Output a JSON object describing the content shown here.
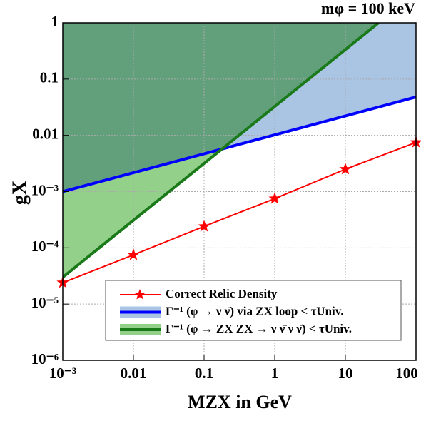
{
  "chart_data": {
    "type": "line",
    "title": "mφ = 100 keV",
    "x_label": "MZX in GeV",
    "y_label": "gX",
    "log_x": true,
    "log_y": true,
    "grid": true,
    "xlim": [
      0.001,
      100
    ],
    "ylim": [
      1e-06,
      1
    ],
    "xticks": [
      {
        "value": 0.001,
        "label": "10⁻³"
      },
      0.01,
      0.1,
      1,
      10,
      100
    ],
    "yticks": [
      {
        "value": 1e-06,
        "label": "10⁻⁶"
      },
      {
        "value": 1e-05,
        "label": "10⁻⁵"
      },
      {
        "value": 0.0001,
        "label": "10⁻⁴"
      },
      {
        "value": 0.001,
        "label": "10⁻³"
      },
      0.01,
      0.1,
      1
    ],
    "series": [
      {
        "name": "Correct Relic Density",
        "color": "#ff0000",
        "marker": "star",
        "x": [
          0.001,
          0.01,
          0.1,
          1,
          10,
          100
        ],
        "values": [
          2.4e-05,
          7.5e-05,
          0.00024,
          0.00075,
          0.0025,
          0.0075
        ]
      },
      {
        "name": "Γ⁻¹ (φ → ν ν̄) via ZX loop < τUniv.",
        "color": "#0000ff",
        "fill_above": "#aac4e4",
        "x": [
          0.001,
          100
        ],
        "values": [
          0.001,
          0.048
        ]
      },
      {
        "name": "Γ⁻¹ (φ → ZX ZX → ν ν̄ ν ν̄) < τUniv.",
        "color": "#1a7a1a",
        "fill_above": "#93d08a",
        "x": [
          0.001,
          29.5
        ],
        "values": [
          3e-05,
          1
        ]
      }
    ]
  }
}
